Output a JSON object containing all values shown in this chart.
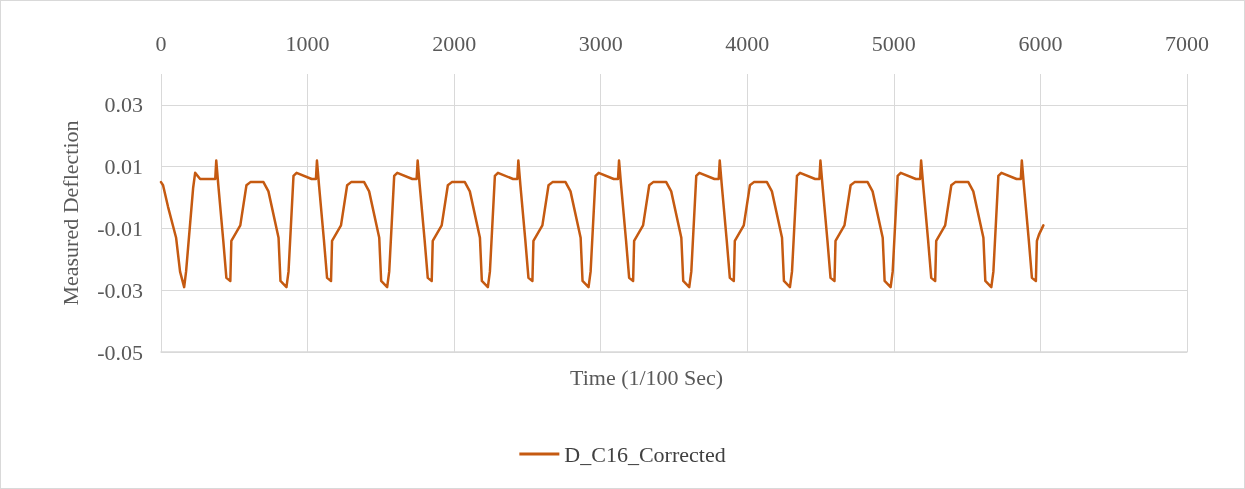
{
  "chart_data": {
    "type": "line",
    "xlabel": "Time (1/100 Sec)",
    "ylabel": "Measured Deflection",
    "xlim": [
      0,
      7000
    ],
    "xticks": [
      0,
      1000,
      2000,
      3000,
      4000,
      5000,
      6000,
      7000
    ],
    "ylim": [
      -0.05,
      0.04
    ],
    "yticks": [
      -0.05,
      -0.03,
      -0.01,
      0.01,
      0.03
    ],
    "grid": true,
    "legend": "bottom",
    "marker": "none",
    "line_style": "solid",
    "series": [
      {
        "name": "D_C16_Corrected",
        "color": "#c55a11",
        "x": [
          0,
          14,
          48,
          103,
          130,
          158,
          171,
          219,
          233,
          267,
          370,
          377,
          391,
          425,
          446,
          473,
          480,
          541,
          583,
          610,
          699,
          733,
          802,
          815,
          856,
          870,
          904,
          925,
          1028,
          1057,
          1064,
          1078,
          1112,
          1133,
          1160,
          1167,
          1228,
          1270,
          1297,
          1386,
          1420,
          1489,
          1502,
          1543,
          1557,
          1591,
          1612,
          1715,
          1744,
          1751,
          1765,
          1799,
          1820,
          1847,
          1854,
          1915,
          1957,
          1984,
          2073,
          2107,
          2176,
          2189,
          2230,
          2244,
          2278,
          2299,
          2402,
          2431,
          2438,
          2452,
          2486,
          2507,
          2534,
          2541,
          2602,
          2644,
          2671,
          2760,
          2794,
          2863,
          2876,
          2917,
          2931,
          2965,
          2986,
          3089,
          3118,
          3125,
          3139,
          3173,
          3194,
          3221,
          3228,
          3289,
          3331,
          3358,
          3447,
          3481,
          3550,
          3563,
          3604,
          3618,
          3652,
          3673,
          3776,
          3805,
          3812,
          3826,
          3860,
          3881,
          3908,
          3915,
          3976,
          4018,
          4045,
          4134,
          4168,
          4237,
          4250,
          4291,
          4305,
          4339,
          4360,
          4463,
          4492,
          4499,
          4513,
          4547,
          4568,
          4595,
          4602,
          4663,
          4705,
          4732,
          4821,
          4855,
          4924,
          4937,
          4978,
          4992,
          5026,
          5047,
          5150,
          5179,
          5186,
          5200,
          5234,
          5255,
          5282,
          5289,
          5350,
          5392,
          5419,
          5508,
          5542,
          5611,
          5624,
          5665,
          5679,
          5713,
          5734,
          5837,
          5866,
          5873,
          5887,
          5921,
          5942,
          5969,
          5976,
          5990,
          6020
        ],
        "values": [
          0.005,
          0.004,
          -0.003,
          -0.013,
          -0.024,
          -0.029,
          -0.024,
          0.003,
          0.008,
          0.006,
          0.006,
          0.012,
          0.004,
          -0.014,
          -0.026,
          -0.027,
          -0.014,
          -0.009,
          0.004,
          0.005,
          0.005,
          0.002,
          -0.013,
          -0.027,
          -0.029,
          -0.024,
          0.007,
          0.008,
          0.006,
          0.006,
          0.012,
          0.004,
          -0.014,
          -0.026,
          -0.027,
          -0.014,
          -0.009,
          0.004,
          0.005,
          0.005,
          0.002,
          -0.013,
          -0.027,
          -0.029,
          -0.024,
          0.007,
          0.008,
          0.006,
          0.006,
          0.012,
          0.004,
          -0.014,
          -0.026,
          -0.027,
          -0.014,
          -0.009,
          0.004,
          0.005,
          0.005,
          0.002,
          -0.013,
          -0.027,
          -0.029,
          -0.024,
          0.007,
          0.008,
          0.006,
          0.006,
          0.012,
          0.004,
          -0.014,
          -0.026,
          -0.027,
          -0.014,
          -0.009,
          0.004,
          0.005,
          0.005,
          0.002,
          -0.013,
          -0.027,
          -0.029,
          -0.024,
          0.007,
          0.008,
          0.006,
          0.006,
          0.012,
          0.004,
          -0.014,
          -0.026,
          -0.027,
          -0.014,
          -0.009,
          0.004,
          0.005,
          0.005,
          0.002,
          -0.013,
          -0.027,
          -0.029,
          -0.024,
          0.007,
          0.008,
          0.006,
          0.006,
          0.012,
          0.004,
          -0.014,
          -0.026,
          -0.027,
          -0.014,
          -0.009,
          0.004,
          0.005,
          0.005,
          0.002,
          -0.013,
          -0.027,
          -0.029,
          -0.024,
          0.007,
          0.008,
          0.006,
          0.006,
          0.012,
          0.004,
          -0.014,
          -0.026,
          -0.027,
          -0.014,
          -0.009,
          0.004,
          0.005,
          0.005,
          0.002,
          -0.013,
          -0.027,
          -0.029,
          -0.024,
          0.007,
          0.008,
          0.006,
          0.006,
          0.012,
          0.004,
          -0.014,
          -0.026,
          -0.027,
          -0.014,
          -0.009,
          0.004,
          0.005,
          0.005,
          0.002,
          -0.013,
          -0.027,
          -0.029,
          -0.024,
          0.007,
          0.008,
          0.006,
          0.006,
          0.012,
          0.004,
          -0.014,
          -0.026,
          -0.027,
          -0.014,
          -0.012,
          -0.009
        ]
      }
    ]
  }
}
